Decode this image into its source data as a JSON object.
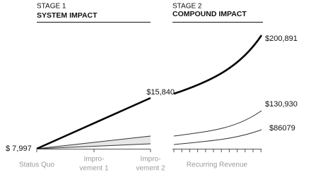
{
  "stages": [
    {
      "step": "STAGE 1",
      "title": "SYSTEM IMPACT"
    },
    {
      "step": "STAGE 2",
      "title": "COMPOUND IMPACT"
    }
  ],
  "value_labels": [
    "$ 7,997",
    "$15,840",
    "$200,891",
    "$130,930",
    "$86079"
  ],
  "axis_labels": [
    [
      "Status Quo"
    ],
    [
      "Impro-",
      "vement 1"
    ],
    [
      "Impro-",
      "vement 2"
    ],
    [
      "Recurring Revenue"
    ]
  ]
}
